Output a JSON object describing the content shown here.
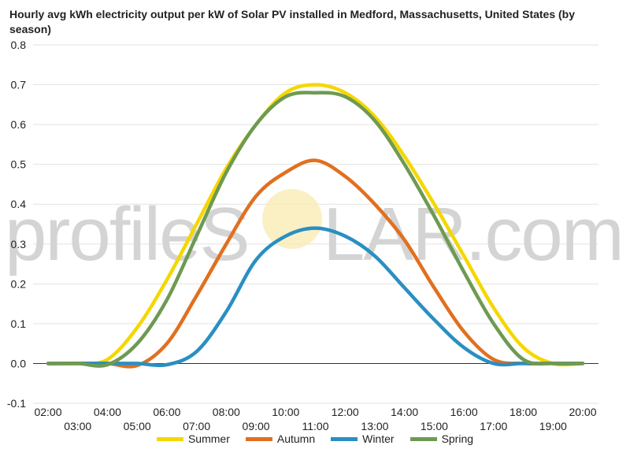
{
  "chart_data": {
    "type": "line",
    "title": "Hourly avg kWh electricity output per kW of Solar PV installed in Medford, Massachusetts, United States (by season)",
    "xlabel": "",
    "ylabel": "",
    "x": [
      "02:00",
      "03:00",
      "04:00",
      "05:00",
      "06:00",
      "07:00",
      "08:00",
      "09:00",
      "10:00",
      "11:00",
      "12:00",
      "13:00",
      "14:00",
      "15:00",
      "16:00",
      "17:00",
      "18:00",
      "19:00",
      "20:00"
    ],
    "ylim": [
      -0.1,
      0.8
    ],
    "yticks": [
      "0.8",
      "0.7",
      "0.6",
      "0.5",
      "0.4",
      "0.3",
      "0.2",
      "0.1",
      "0.0",
      "-0.1"
    ],
    "grid": true,
    "legend": "bottom",
    "series": [
      {
        "name": "Summer",
        "color": "#f5d700",
        "values": [
          0,
          0,
          0.01,
          0.09,
          0.21,
          0.35,
          0.49,
          0.6,
          0.68,
          0.7,
          0.68,
          0.62,
          0.52,
          0.4,
          0.27,
          0.14,
          0.04,
          0.0,
          0
        ]
      },
      {
        "name": "Autumn",
        "color": "#e07020",
        "values": [
          0,
          0,
          0,
          -0.005,
          0.05,
          0.17,
          0.3,
          0.42,
          0.48,
          0.51,
          0.47,
          0.4,
          0.31,
          0.19,
          0.08,
          0.01,
          0,
          0,
          0
        ]
      },
      {
        "name": "Winter",
        "color": "#2a8fc1",
        "values": [
          0,
          0,
          0,
          0,
          -0.003,
          0.03,
          0.13,
          0.26,
          0.32,
          0.34,
          0.32,
          0.27,
          0.19,
          0.11,
          0.04,
          0.0,
          0,
          0,
          0
        ]
      },
      {
        "name": "Spring",
        "color": "#6e9a52",
        "values": [
          0,
          0,
          -0.003,
          0.05,
          0.16,
          0.32,
          0.48,
          0.6,
          0.67,
          0.68,
          0.67,
          0.61,
          0.5,
          0.37,
          0.23,
          0.1,
          0.01,
          0,
          0
        ]
      }
    ]
  },
  "watermark": {
    "left": "profileS",
    "right": "LAR.com"
  }
}
